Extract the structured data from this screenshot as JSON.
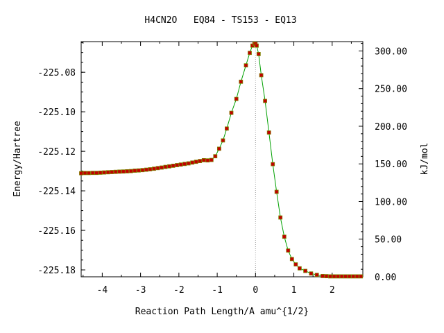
{
  "chart_data": {
    "type": "line",
    "title": "H4CN2O   EQ84 - TS153 - EQ13",
    "xlabel": "Reaction Path Length/A amu^{1/2}",
    "ylabel_left": "Energy/Hartree",
    "ylabel_right": "kJ/mol",
    "xlim": [
      -4.55,
      2.8
    ],
    "ylim_left": [
      -225.1835,
      -225.0645
    ],
    "ylim_right": [
      0,
      312.4
    ],
    "xticks": [
      -4,
      -3,
      -2,
      -1,
      0,
      1,
      2
    ],
    "xtick_labels": [
      "-4",
      "-3",
      "-2",
      "-1",
      "0",
      "1",
      "2"
    ],
    "yticks_left": [
      -225.08,
      -225.1,
      -225.12,
      -225.14,
      -225.16,
      -225.18
    ],
    "ytick_labels_left": [
      "-225.08",
      "-225.10",
      "-225.12",
      "-225.14",
      "-225.16",
      "-225.18"
    ],
    "yticks_right": [
      0,
      50,
      100,
      150,
      200,
      250,
      300
    ],
    "ytick_labels_right": [
      "0.00",
      "50.00",
      "100.00",
      "150.00",
      "200.00",
      "250.00",
      "300.00"
    ],
    "ts_x": 0.0,
    "colors": {
      "line": "#00a000",
      "marker": "#c00000",
      "marker_edge": "#808000",
      "ts_line": "#a0a0a0"
    },
    "x": [
      -4.55,
      -4.45,
      -4.35,
      -4.25,
      -4.15,
      -4.05,
      -3.95,
      -3.85,
      -3.75,
      -3.65,
      -3.55,
      -3.45,
      -3.35,
      -3.25,
      -3.15,
      -3.05,
      -2.95,
      -2.85,
      -2.75,
      -2.65,
      -2.55,
      -2.45,
      -2.35,
      -2.25,
      -2.15,
      -2.05,
      -1.95,
      -1.85,
      -1.75,
      -1.65,
      -1.55,
      -1.45,
      -1.35,
      -1.25,
      -1.15,
      -1.05,
      -0.95,
      -0.85,
      -0.75,
      -0.63,
      -0.5,
      -0.38,
      -0.25,
      -0.15,
      -0.08,
      -0.03,
      0.0,
      0.03,
      0.08,
      0.15,
      0.25,
      0.35,
      0.45,
      0.55,
      0.65,
      0.75,
      0.85,
      0.95,
      1.05,
      1.15,
      1.3,
      1.45,
      1.6,
      1.75,
      1.85,
      1.95,
      2.05,
      2.15,
      2.25,
      2.35,
      2.45,
      2.55,
      2.65,
      2.75
    ],
    "y": [
      -225.1311,
      -225.131,
      -225.131,
      -225.1309,
      -225.1309,
      -225.1308,
      -225.1307,
      -225.1306,
      -225.1305,
      -225.1304,
      -225.1303,
      -225.1302,
      -225.1301,
      -225.13,
      -225.1298,
      -225.1297,
      -225.1295,
      -225.1293,
      -225.1291,
      -225.1288,
      -225.1285,
      -225.1282,
      -225.1279,
      -225.1276,
      -225.1273,
      -225.127,
      -225.1267,
      -225.1264,
      -225.1261,
      -225.1257,
      -225.1253,
      -225.1249,
      -225.1245,
      -225.1246,
      -225.1244,
      -225.1225,
      -225.1187,
      -225.1145,
      -225.1085,
      -225.1005,
      -225.0935,
      -225.0848,
      -225.0765,
      -225.0702,
      -225.0665,
      -225.0655,
      -225.0656,
      -225.0665,
      -225.0708,
      -225.0815,
      -225.0945,
      -225.1105,
      -225.1265,
      -225.1405,
      -225.1535,
      -225.1632,
      -225.1702,
      -225.1745,
      -225.1772,
      -225.1792,
      -225.1805,
      -225.1818,
      -225.1825,
      -225.1831,
      -225.1832,
      -225.1833,
      -225.1833,
      -225.1833,
      -225.1833,
      -225.1833,
      -225.1833,
      -225.1833,
      -225.1833,
      -225.1833
    ]
  }
}
